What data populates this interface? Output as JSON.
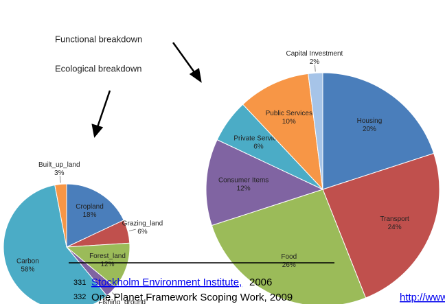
{
  "chart_data": [
    {
      "type": "pie",
      "categories": [
        "Housing",
        "Transport",
        "Food",
        "Consumer Items",
        "Private Services",
        "Public Services",
        "Capital Investment"
      ],
      "values": [
        20,
        24,
        26,
        12,
        6,
        10,
        2
      ],
      "value_labels": [
        "20%",
        "24%",
        "26%",
        "12%",
        "6%",
        "10%",
        "2%"
      ],
      "colors": [
        "#4a7ebb",
        "#c0504d",
        "#9bbb59",
        "#8064a2",
        "#4bacc6",
        "#f79646",
        "#a6c4e8"
      ]
    },
    {
      "type": "pie",
      "categories": [
        "Cropland",
        "Grazing_land",
        "Forest_land",
        "Fishing_ground",
        "Carbon",
        "Built_up_land"
      ],
      "values": [
        18,
        6,
        12,
        3,
        58,
        3
      ],
      "value_labels": [
        "18%",
        "6%",
        "12%",
        null,
        "58%",
        "3%"
      ],
      "colors": [
        "#4a7ebb",
        "#c0504d",
        "#9bbb59",
        "#8064a2",
        "#4bacc6",
        "#f79646"
      ]
    }
  ],
  "annotations": [
    "Functional breakdown",
    "Ecological breakdown"
  ],
  "footnotes": [
    {
      "number": "331",
      "link": "Stockholm Environment Institute,",
      "text": "2006"
    },
    {
      "number": "332",
      "text": "One Planet Framework Scoping Work, 2009",
      "link": "http://www"
    }
  ]
}
